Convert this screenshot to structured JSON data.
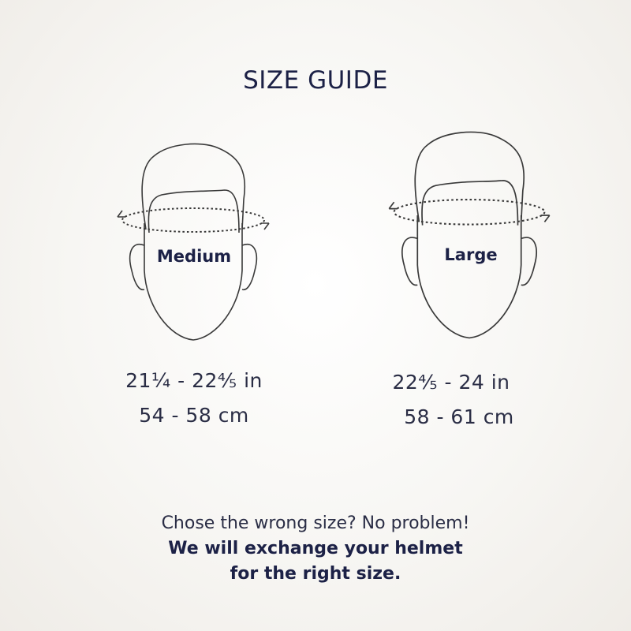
{
  "title": "SIZE GUIDE",
  "sizes": [
    {
      "label": "Medium",
      "inches": "21¼ - 22⅘ in",
      "cm": "54 - 58 cm"
    },
    {
      "label": "Large",
      "inches": "22⅘ - 24 in",
      "cm": "58 - 61 cm"
    }
  ],
  "footer": {
    "line1": "Chose the wrong size? No problem!",
    "line2": "We will exchange your helmet",
    "line3": "for the right size."
  }
}
